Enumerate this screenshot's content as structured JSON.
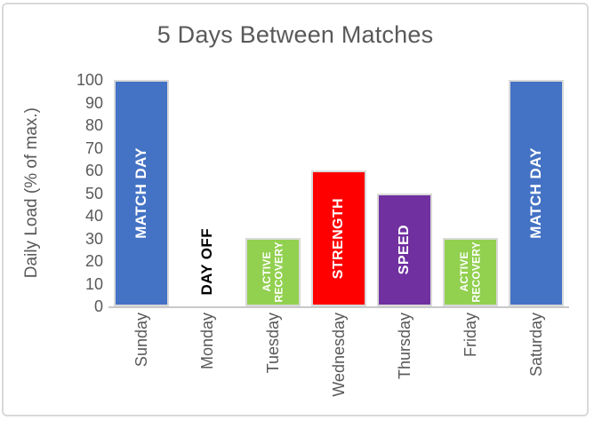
{
  "chart_data": {
    "type": "bar",
    "title": "5 Days Between Matches",
    "xlabel": "",
    "ylabel": "Daily Load (% of max.)",
    "ylim": [
      0,
      100
    ],
    "ytick_step": 10,
    "ytick_labels": [
      "0",
      "10",
      "20",
      "30",
      "40",
      "50",
      "60",
      "70",
      "80",
      "90",
      "100"
    ],
    "grid": false,
    "legend": false,
    "categories": [
      "Sunday",
      "Monday",
      "Tuesday",
      "Wednesday",
      "Thursday",
      "Friday",
      "Saturday"
    ],
    "values": [
      100,
      0,
      30,
      60,
      50,
      30,
      100
    ],
    "bars": [
      {
        "category": "Sunday",
        "value": 100,
        "label": "MATCH DAY",
        "color": "#4472C4",
        "label_color": "#FFFFFF"
      },
      {
        "category": "Monday",
        "value": 0,
        "label": "DAY OFF",
        "color": null,
        "label_color": "#000000"
      },
      {
        "category": "Tuesday",
        "value": 30,
        "label": "ACTIVE\nRECOVERY",
        "color": "#92D050",
        "label_color": "#FFFFFF"
      },
      {
        "category": "Wednesday",
        "value": 60,
        "label": "STRENGTH",
        "color": "#FF0000",
        "label_color": "#FFFFFF"
      },
      {
        "category": "Thursday",
        "value": 50,
        "label": "SPEED",
        "color": "#7030A0",
        "label_color": "#FFFFFF"
      },
      {
        "category": "Friday",
        "value": 30,
        "label": "ACTIVE\nRECOVERY",
        "color": "#92D050",
        "label_color": "#FFFFFF"
      },
      {
        "category": "Saturday",
        "value": 100,
        "label": "MATCH DAY",
        "color": "#4472C4",
        "label_color": "#FFFFFF"
      }
    ],
    "colors": {
      "title_text": "#595959",
      "axis_text": "#595959",
      "axis_line": "#C9C9C9",
      "bar_border": "#D9D9D9",
      "frame_border": "#D9D9D9",
      "background": "#FFFFFF"
    }
  }
}
